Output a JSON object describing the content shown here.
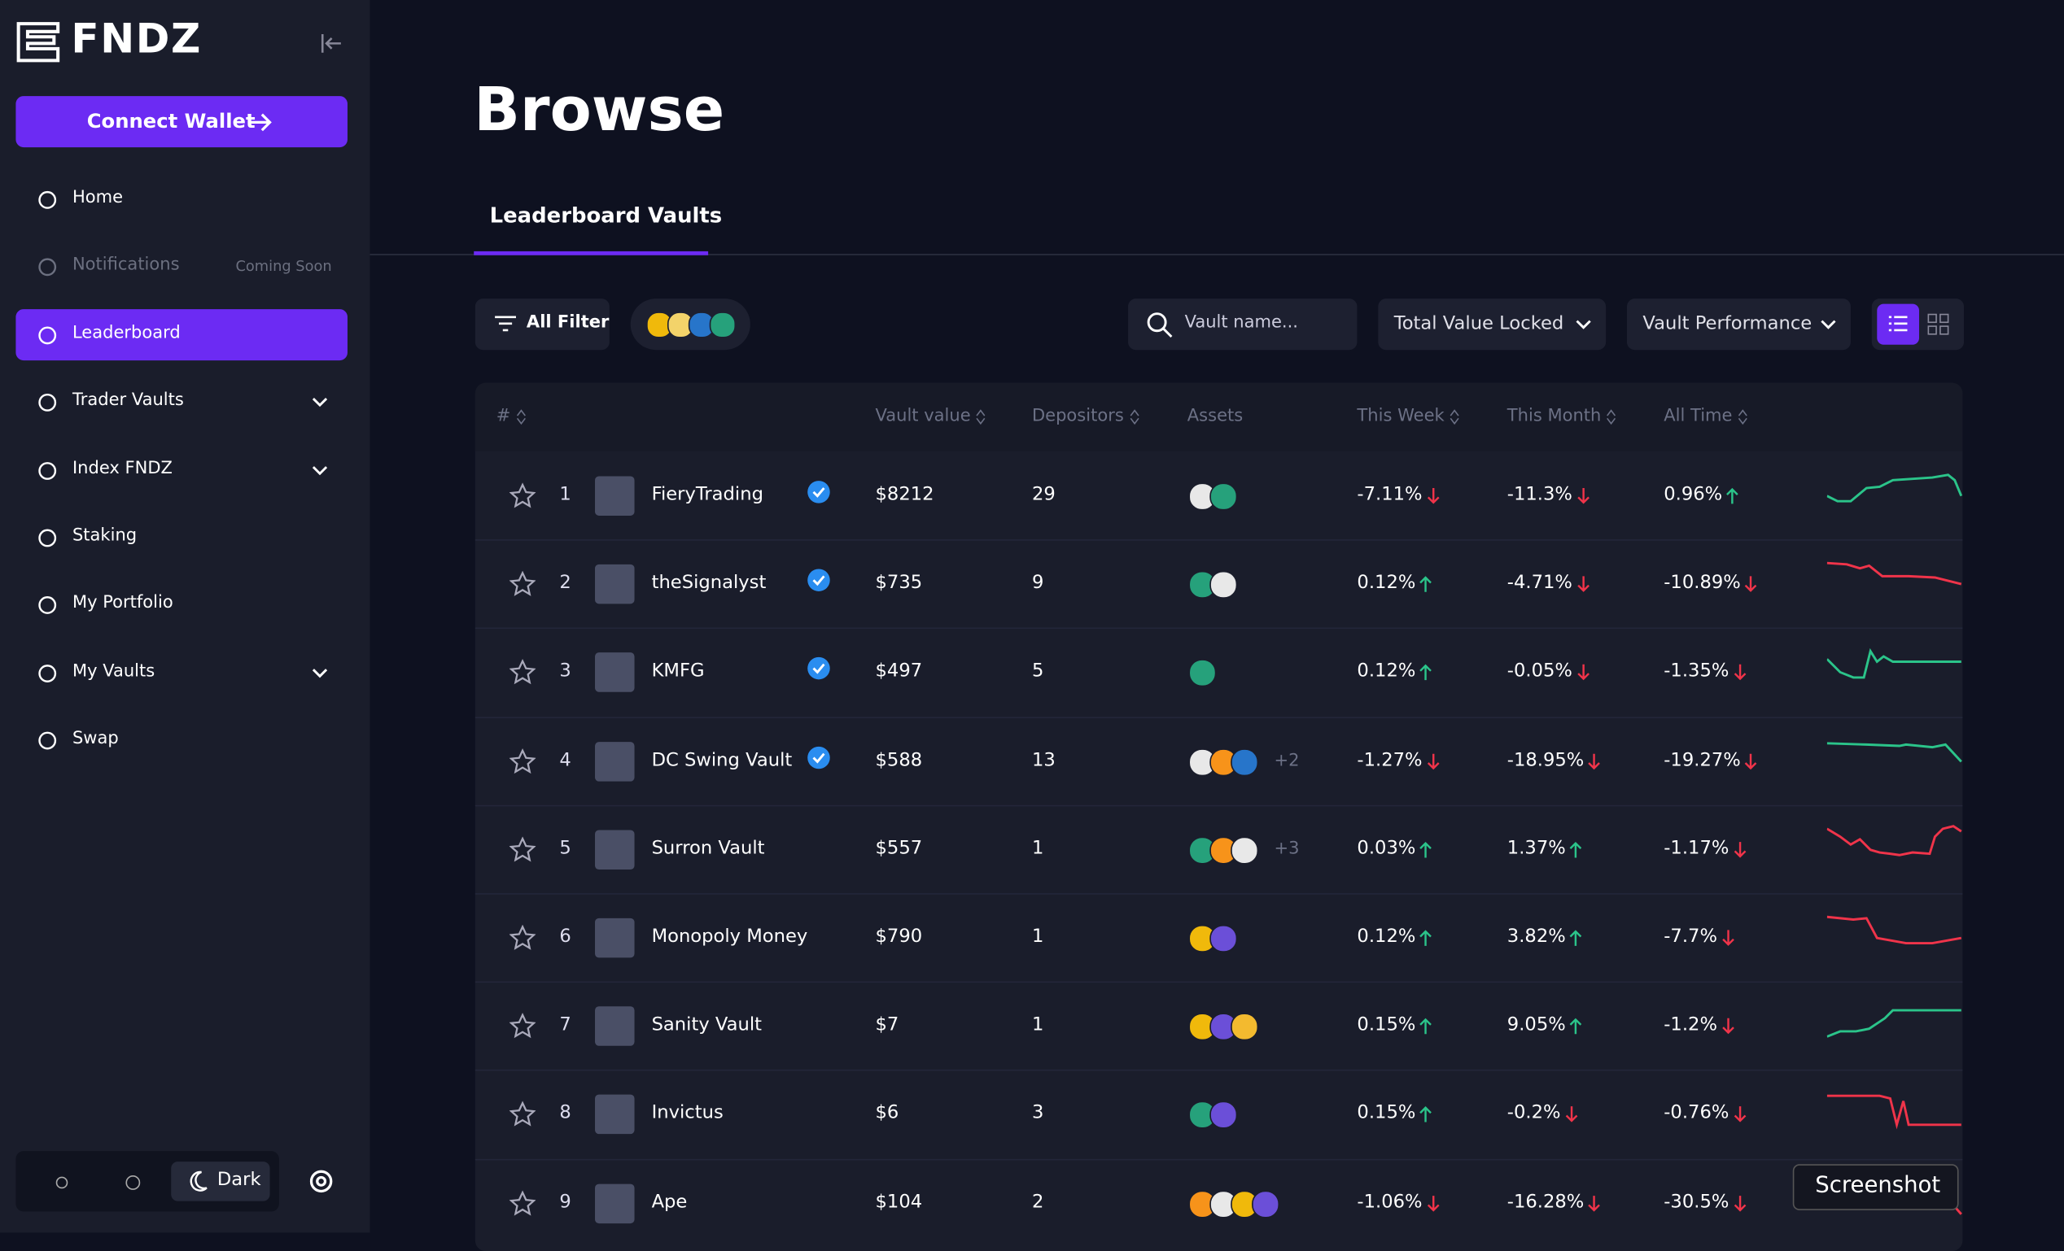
{
  "sidebar": {
    "brand": "FNDZ",
    "connect": "Connect Wallet",
    "nav": [
      {
        "label": "Home"
      },
      {
        "label": "Notifications",
        "badge": "Coming Soon"
      },
      {
        "label": "Leaderboard"
      },
      {
        "label": "Trader Vaults"
      },
      {
        "label": "Index FNDZ"
      },
      {
        "label": "Staking"
      },
      {
        "label": "My Portfolio"
      },
      {
        "label": "My Vaults"
      },
      {
        "label": "Swap"
      }
    ],
    "theme": "Dark"
  },
  "header": {
    "title": "Browse",
    "tab": "Leaderboard Vaults"
  },
  "toolbar": {
    "filter": "All Filter",
    "search_placeholder": "Vault name...",
    "sort1": "Total Value Locked",
    "sort2": "Vault Performance"
  },
  "table": {
    "columns": [
      "#",
      "Vault value",
      "Depositors",
      "Assets",
      "This Week",
      "This Month",
      "All Time"
    ],
    "rows": [
      {
        "rank": 1,
        "name": "FieryTrading",
        "verified": true,
        "value": "$8212",
        "depositors": 29,
        "asset_colors": [
          "#e8e8e8",
          "#26a17b"
        ],
        "week": "-7.11%",
        "month": "-11.3%",
        "all": "0.96%"
      },
      {
        "rank": 2,
        "name": "theSignalyst",
        "verified": true,
        "value": "$735",
        "depositors": 9,
        "asset_colors": [
          "#26a17b",
          "#e8e8e8"
        ],
        "week": "0.12%",
        "month": "-4.71%",
        "all": "-10.89%"
      },
      {
        "rank": 3,
        "name": "KMFG",
        "verified": true,
        "value": "$497",
        "depositors": 5,
        "asset_colors": [
          "#26a17b"
        ],
        "week": "0.12%",
        "month": "-0.05%",
        "all": "-1.35%"
      },
      {
        "rank": 4,
        "name": "DC Swing Vault",
        "verified": true,
        "value": "$588",
        "depositors": 13,
        "asset_colors": [
          "#e8e8e8",
          "#f7931a",
          "#2775ca"
        ],
        "more": "+2",
        "week": "-1.27%",
        "month": "-18.95%",
        "all": "-19.27%"
      },
      {
        "rank": 5,
        "name": "Surron Vault",
        "verified": false,
        "value": "$557",
        "depositors": 1,
        "asset_colors": [
          "#26a17b",
          "#f7931a",
          "#e8e8e8"
        ],
        "more": "+3",
        "week": "0.03%",
        "month": "1.37%",
        "all": "-1.17%"
      },
      {
        "rank": 6,
        "name": "Monopoly Money",
        "verified": false,
        "value": "$790",
        "depositors": 1,
        "asset_colors": [
          "#f0b90b",
          "#6b4fd8"
        ],
        "week": "0.12%",
        "month": "3.82%",
        "all": "-7.7%"
      },
      {
        "rank": 7,
        "name": "Sanity Vault",
        "verified": false,
        "value": "$7",
        "depositors": 1,
        "asset_colors": [
          "#f0b90b",
          "#6b4fd8",
          "#f3ba2f"
        ],
        "week": "0.15%",
        "month": "9.05%",
        "all": "-1.2%"
      },
      {
        "rank": 8,
        "name": "Invictus",
        "verified": false,
        "value": "$6",
        "depositors": 3,
        "asset_colors": [
          "#26a17b",
          "#6b4fd8"
        ],
        "week": "0.15%",
        "month": "-0.2%",
        "all": "-0.76%"
      },
      {
        "rank": 9,
        "name": "Ape",
        "verified": false,
        "value": "$104",
        "depositors": 2,
        "asset_colors": [
          "#f7931a",
          "#e8e8e8",
          "#f0b90b",
          "#6b4fd8"
        ],
        "week": "-1.06%",
        "month": "-16.28%",
        "all": "-30.5%"
      }
    ]
  },
  "tooltip": "Screenshot"
}
